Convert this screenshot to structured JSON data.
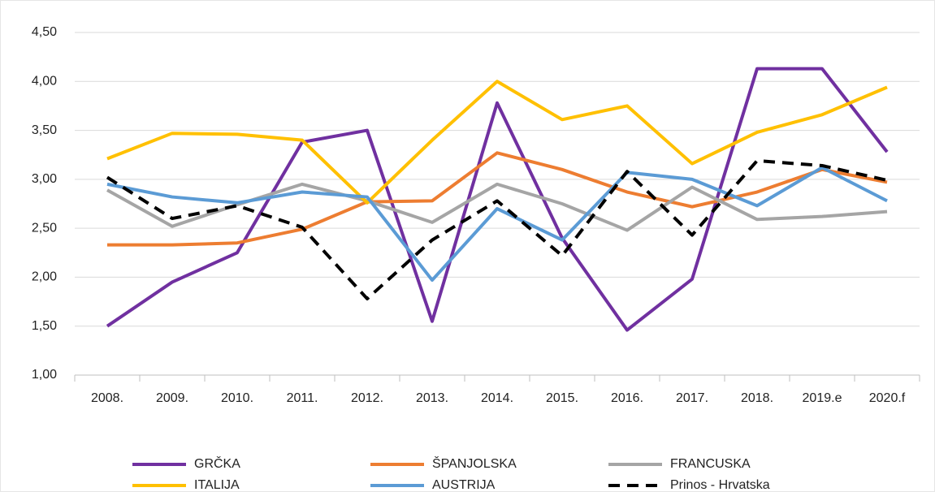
{
  "chart_data": {
    "type": "line",
    "categories": [
      "2008.",
      "2009.",
      "2010.",
      "2011.",
      "2012.",
      "2013.",
      "2014.",
      "2015.",
      "2016.",
      "2017.",
      "2018.",
      "2019.e",
      "2020.f"
    ],
    "series": [
      {
        "name": "GRČKA",
        "color": "#7030a0",
        "values": [
          1.5,
          1.95,
          2.25,
          3.38,
          3.5,
          1.55,
          3.78,
          2.4,
          1.46,
          1.98,
          4.13,
          4.13,
          3.28
        ]
      },
      {
        "name": "ŠPANJOLSKA",
        "color": "#ed7d31",
        "values": [
          2.33,
          2.33,
          2.35,
          2.49,
          2.77,
          2.78,
          3.27,
          3.1,
          2.87,
          2.72,
          2.87,
          3.1,
          2.97
        ]
      },
      {
        "name": "FRANCUSKA",
        "color": "#a5a5a5",
        "values": [
          2.89,
          2.52,
          2.74,
          2.95,
          2.78,
          2.56,
          2.95,
          2.75,
          2.48,
          2.92,
          2.59,
          2.62,
          2.67
        ]
      },
      {
        "name": "ITALIJA",
        "color": "#ffc000",
        "values": [
          3.21,
          3.47,
          3.46,
          3.4,
          2.76,
          3.4,
          4.0,
          3.61,
          3.75,
          3.16,
          3.48,
          3.66,
          3.94
        ]
      },
      {
        "name": "AUSTRIJA",
        "color": "#5b9bd5",
        "values": [
          2.95,
          2.82,
          2.76,
          2.87,
          2.82,
          1.97,
          2.7,
          2.38,
          3.07,
          3.0,
          2.73,
          3.12,
          2.78
        ]
      },
      {
        "name": "Prinos - Hrvatska",
        "color": "#000000",
        "dashed": true,
        "values": [
          3.02,
          2.6,
          2.73,
          2.51,
          1.78,
          2.38,
          2.78,
          2.22,
          3.08,
          2.43,
          3.19,
          3.14,
          2.99
        ]
      }
    ],
    "ylim": [
      1.0,
      4.5
    ],
    "yticks": [
      {
        "value": 1.0,
        "label": "1,00"
      },
      {
        "value": 1.5,
        "label": "1,50"
      },
      {
        "value": 2.0,
        "label": "2,00"
      },
      {
        "value": 2.5,
        "label": "2,50"
      },
      {
        "value": 3.0,
        "label": "3,00"
      },
      {
        "value": 3.5,
        "label": "3,50"
      },
      {
        "value": 4.0,
        "label": "4,00"
      },
      {
        "value": 4.5,
        "label": "4,50"
      }
    ],
    "grid": true
  }
}
